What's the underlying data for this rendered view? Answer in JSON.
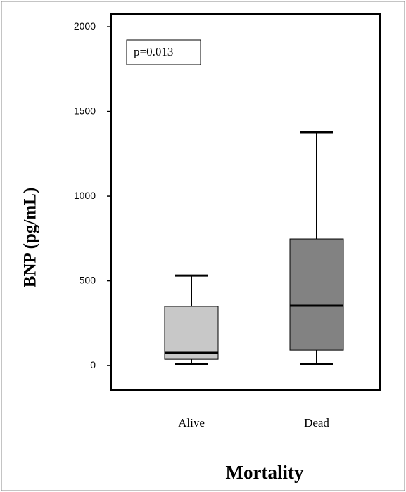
{
  "chart_data": {
    "type": "box",
    "y_label": "BNP  (pg/mL)",
    "x_label": "Mortality",
    "annotation": "p=0.013",
    "categories": [
      "Alive",
      "Dead"
    ],
    "colors": [
      "#c8c8c8",
      "#828282"
    ],
    "boxes": [
      {
        "whisker_low": 10,
        "q1": 37,
        "median": 75,
        "q3": 349,
        "whisker_high": 531
      },
      {
        "whisker_low": 10,
        "q1": 91,
        "median": 353,
        "q3": 747,
        "whisker_high": 1378
      }
    ],
    "ylim": [
      -145,
      2075
    ],
    "yticks": [
      0,
      500,
      1000,
      1500,
      2000
    ]
  }
}
